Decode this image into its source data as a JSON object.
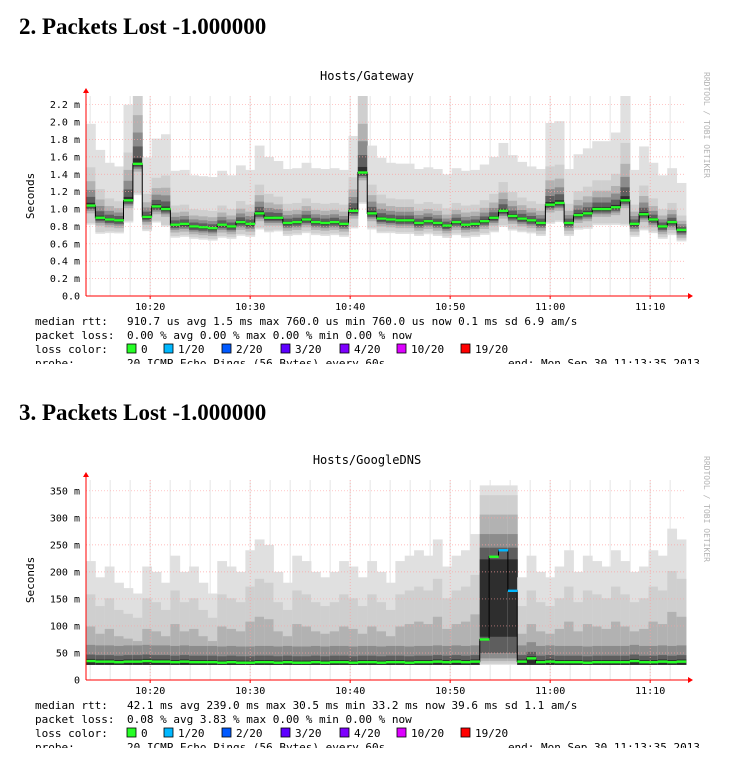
{
  "headings": [
    "2. Packets Lost -1.000000",
    "3. Packets Lost -1.000000"
  ],
  "watermark": "RRDTOOL / TOBI OETIKER",
  "legend_colors": [
    "#26ff26",
    "#00b8ff",
    "#0059ff",
    "#5e00ff",
    "#7e00ff",
    "#dd00ff",
    "#ff0000"
  ],
  "chart_data": [
    {
      "type": "heatmap",
      "title": "Hosts/Gateway",
      "ylabel": "Seconds",
      "ylim": [
        0,
        0.0023
      ],
      "y_ticks": [
        0,
        0.0002,
        0.0004,
        0.0006,
        0.0008,
        0.001,
        0.0012,
        0.0014,
        0.0016,
        0.0018,
        0.002,
        0.0022
      ],
      "y_tick_labels": [
        "0.0",
        "0.2 m",
        "0.4 m",
        "0.6 m",
        "0.8 m",
        "1.0 m",
        "1.2 m",
        "1.4 m",
        "1.6 m",
        "1.8 m",
        "2.0 m",
        "2.2 m"
      ],
      "x_range": [
        "10:13:35",
        "11:13:35"
      ],
      "x_tick_labels": [
        "10:20",
        "10:30",
        "10:40",
        "10:50",
        "11:00",
        "11:10"
      ],
      "grid": true,
      "series": [
        {
          "name": "median rtt",
          "values": [
            0.00104,
            0.0009,
            0.00088,
            0.00087,
            0.0011,
            0.00152,
            0.00091,
            0.00103,
            0.001,
            0.00082,
            0.00083,
            0.0008,
            0.00079,
            0.00078,
            0.00082,
            0.0008,
            0.00085,
            0.00083,
            0.00095,
            0.0009,
            0.0009,
            0.00084,
            0.00085,
            0.00088,
            0.00085,
            0.00084,
            0.00085,
            0.00083,
            0.00098,
            0.00142,
            0.00095,
            0.00089,
            0.00088,
            0.00087,
            0.00087,
            0.00084,
            0.00086,
            0.00084,
            0.00081,
            0.00085,
            0.00082,
            0.00083,
            0.00086,
            0.0009,
            0.00098,
            0.00092,
            0.00089,
            0.00087,
            0.00084,
            0.00105,
            0.00107,
            0.00084,
            0.00093,
            0.00095,
            0.001,
            0.001,
            0.00102,
            0.0011,
            0.00083,
            0.00094,
            0.00088,
            0.0008,
            0.00085,
            0.00076
          ]
        },
        {
          "name": "spread",
          "values": [
            0.0004,
            0.0003,
            0.00022,
            0.0002,
            0.0005,
            0.0008,
            0.00024,
            0.0003,
            0.00035,
            0.0002,
            0.0002,
            0.00018,
            0.00018,
            0.00018,
            0.0002,
            0.00018,
            0.00022,
            0.0002,
            0.0003,
            0.00025,
            0.00022,
            0.0002,
            0.0002,
            0.00022,
            0.0002,
            0.0002,
            0.0002,
            0.0002,
            0.00035,
            0.0008,
            0.0003,
            0.00025,
            0.00022,
            0.00022,
            0.00022,
            0.0002,
            0.0002,
            0.0002,
            0.00018,
            0.0002,
            0.0002,
            0.0002,
            0.00022,
            0.00025,
            0.0003,
            0.00025,
            0.00022,
            0.0002,
            0.0002,
            0.0004,
            0.0004,
            0.0002,
            0.00025,
            0.00028,
            0.0003,
            0.0003,
            0.00035,
            0.0006,
            0.0002,
            0.0003,
            0.00022,
            0.00018,
            0.0002,
            0.00015
          ]
        },
        {
          "name": "loss color",
          "values": [
            0,
            0,
            0,
            0,
            0,
            0,
            0,
            0,
            0,
            0,
            0,
            0,
            0,
            0,
            0,
            0,
            0,
            0,
            0,
            0,
            0,
            0,
            0,
            0,
            0,
            0,
            0,
            0,
            0,
            0,
            0,
            0,
            0,
            0,
            0,
            0,
            0,
            0,
            0,
            0,
            0,
            0,
            0,
            0,
            0,
            0,
            0,
            0,
            0,
            0,
            0,
            0,
            0,
            0,
            0,
            0,
            0,
            0,
            0,
            0,
            0,
            0,
            0,
            0
          ]
        }
      ],
      "legend": {
        "median_label": "median rtt:",
        "median_text": "910.7 us avg   1.5 ms max   760.0 us min   760.0 us now   0.1 ms sd   6.9   am/s",
        "loss_label": "packet loss:",
        "loss_text": "0.00 % avg  0.00 % max   0.00 % min   0.00 % now",
        "color_label": "loss color:",
        "color_items": [
          "0",
          "1/20",
          "2/20",
          "3/20",
          "4/20",
          "10/20",
          "19/20"
        ],
        "probe_label": "probe:",
        "probe_text": "20 ICMP Echo Pings (56 Bytes) every 60s",
        "end_text": "end: Mon Sep 30 11:13:35 2013"
      }
    },
    {
      "type": "heatmap",
      "title": "Hosts/GoogleDNS",
      "ylabel": "Seconds",
      "ylim": [
        0,
        0.37
      ],
      "y_ticks": [
        0,
        0.05,
        0.1,
        0.15,
        0.2,
        0.25,
        0.3,
        0.35
      ],
      "y_tick_labels": [
        "0",
        "50 m",
        "100 m",
        "150 m",
        "200 m",
        "250 m",
        "300 m",
        "350 m"
      ],
      "x_range": [
        "10:13:35",
        "11:13:35"
      ],
      "x_tick_labels": [
        "10:20",
        "10:30",
        "10:40",
        "10:50",
        "11:00",
        "11:10"
      ],
      "grid": true,
      "series": [
        {
          "name": "median rtt",
          "values": [
            0.035,
            0.034,
            0.034,
            0.033,
            0.034,
            0.034,
            0.035,
            0.034,
            0.034,
            0.033,
            0.034,
            0.033,
            0.033,
            0.033,
            0.032,
            0.033,
            0.032,
            0.032,
            0.033,
            0.033,
            0.032,
            0.033,
            0.032,
            0.032,
            0.033,
            0.032,
            0.033,
            0.033,
            0.032,
            0.033,
            0.033,
            0.032,
            0.033,
            0.033,
            0.032,
            0.033,
            0.033,
            0.034,
            0.033,
            0.034,
            0.033,
            0.034,
            0.075,
            0.228,
            0.24,
            0.165,
            0.034,
            0.04,
            0.033,
            0.034,
            0.033,
            0.033,
            0.033,
            0.032,
            0.033,
            0.033,
            0.033,
            0.033,
            0.035,
            0.033,
            0.033,
            0.034,
            0.033,
            0.034
          ]
        },
        {
          "name": "top",
          "values": [
            0.22,
            0.19,
            0.21,
            0.18,
            0.17,
            0.16,
            0.21,
            0.2,
            0.18,
            0.23,
            0.2,
            0.21,
            0.18,
            0.16,
            0.22,
            0.21,
            0.2,
            0.24,
            0.26,
            0.25,
            0.2,
            0.18,
            0.23,
            0.22,
            0.2,
            0.19,
            0.2,
            0.22,
            0.21,
            0.19,
            0.22,
            0.2,
            0.18,
            0.22,
            0.23,
            0.24,
            0.23,
            0.26,
            0.21,
            0.23,
            0.24,
            0.27,
            0.36,
            0.36,
            0.36,
            0.36,
            0.19,
            0.23,
            0.2,
            0.19,
            0.21,
            0.24,
            0.2,
            0.23,
            0.22,
            0.21,
            0.24,
            0.22,
            0.2,
            0.21,
            0.24,
            0.23,
            0.28,
            0.26
          ]
        },
        {
          "name": "loss color",
          "values": [
            0,
            0,
            0,
            0,
            0,
            0,
            0,
            0,
            0,
            0,
            0,
            0,
            0,
            0,
            0,
            0,
            0,
            0,
            0,
            0,
            0,
            0,
            0,
            0,
            0,
            0,
            0,
            0,
            0,
            0,
            0,
            0,
            0,
            0,
            0,
            0,
            0,
            0,
            0,
            0,
            0,
            0,
            0,
            0,
            1,
            1,
            0,
            0,
            0,
            0,
            0,
            0,
            0,
            0,
            0,
            0,
            0,
            0,
            0,
            0,
            0,
            0,
            0,
            0
          ]
        }
      ],
      "legend": {
        "median_label": "median rtt:",
        "median_text": "42.1 ms avg   239.0 ms max   30.5 ms min   33.2 ms now   39.6 ms sd   1.1   am/s",
        "loss_label": "packet loss:",
        "loss_text": "0.08 % avg  3.83 % max   0.00 % min   0.00 % now",
        "color_label": "loss color:",
        "color_items": [
          "0",
          "1/20",
          "2/20",
          "3/20",
          "4/20",
          "10/20",
          "19/20"
        ],
        "probe_label": "probe:",
        "probe_text": "20 ICMP Echo Pings (56 Bytes) every 60s",
        "end_text": "end: Mon Sep 30 11:13:35 2013"
      }
    }
  ]
}
